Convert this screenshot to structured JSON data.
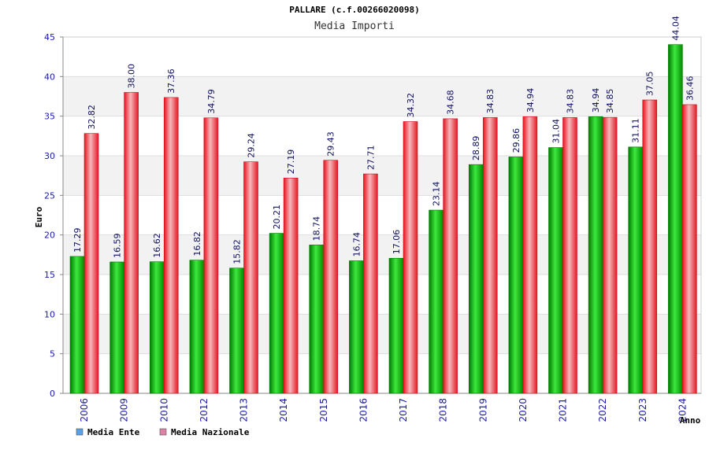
{
  "chart_data": {
    "type": "bar",
    "title": "PALLARE (c.f.00266020098)",
    "subtitle": "Media Importi",
    "xlabel": "Anno",
    "ylabel": "Euro",
    "ylim": [
      0,
      45
    ],
    "yticks": [
      0,
      5,
      10,
      15,
      20,
      25,
      30,
      35,
      40,
      45
    ],
    "categories": [
      "2006",
      "2009",
      "2010",
      "2012",
      "2013",
      "2014",
      "2015",
      "2016",
      "2017",
      "2018",
      "2019",
      "2020",
      "2021",
      "2022",
      "2023",
      "2024"
    ],
    "series": [
      {
        "name": "Media Ente",
        "color": "#00b400",
        "values": [
          17.29,
          16.59,
          16.62,
          16.82,
          15.82,
          20.21,
          18.74,
          16.74,
          17.06,
          23.14,
          28.89,
          29.86,
          31.04,
          34.94,
          31.11,
          44.04
        ],
        "labels": [
          "17.29",
          "16.59",
          "16.62",
          "16.82",
          "15.82",
          "20.21",
          "18.74",
          "16.74",
          "17.06",
          "23.14",
          "28.89",
          "29.86",
          "31.04",
          "34.94",
          "31.11",
          "44.04"
        ]
      },
      {
        "name": "Media Nazionale",
        "color": "#e8202a",
        "values": [
          32.82,
          38.0,
          37.36,
          34.79,
          29.24,
          27.19,
          29.43,
          27.71,
          34.32,
          34.68,
          34.83,
          34.94,
          34.83,
          34.85,
          37.05,
          36.46
        ],
        "labels": [
          "32.82",
          "38.00",
          "37.36",
          "34.79",
          "29.24",
          "27.19",
          "29.43",
          "27.71",
          "34.32",
          "34.68",
          "34.83",
          "34.94",
          "34.83",
          "34.85",
          "37.05",
          "36.46"
        ]
      }
    ],
    "legend": [
      {
        "label": "Media Ente",
        "color": "#5aa0e6"
      },
      {
        "label": "Media Nazionale",
        "color": "#e080a8"
      }
    ],
    "legend_position": "bottom-left",
    "grid": true
  }
}
